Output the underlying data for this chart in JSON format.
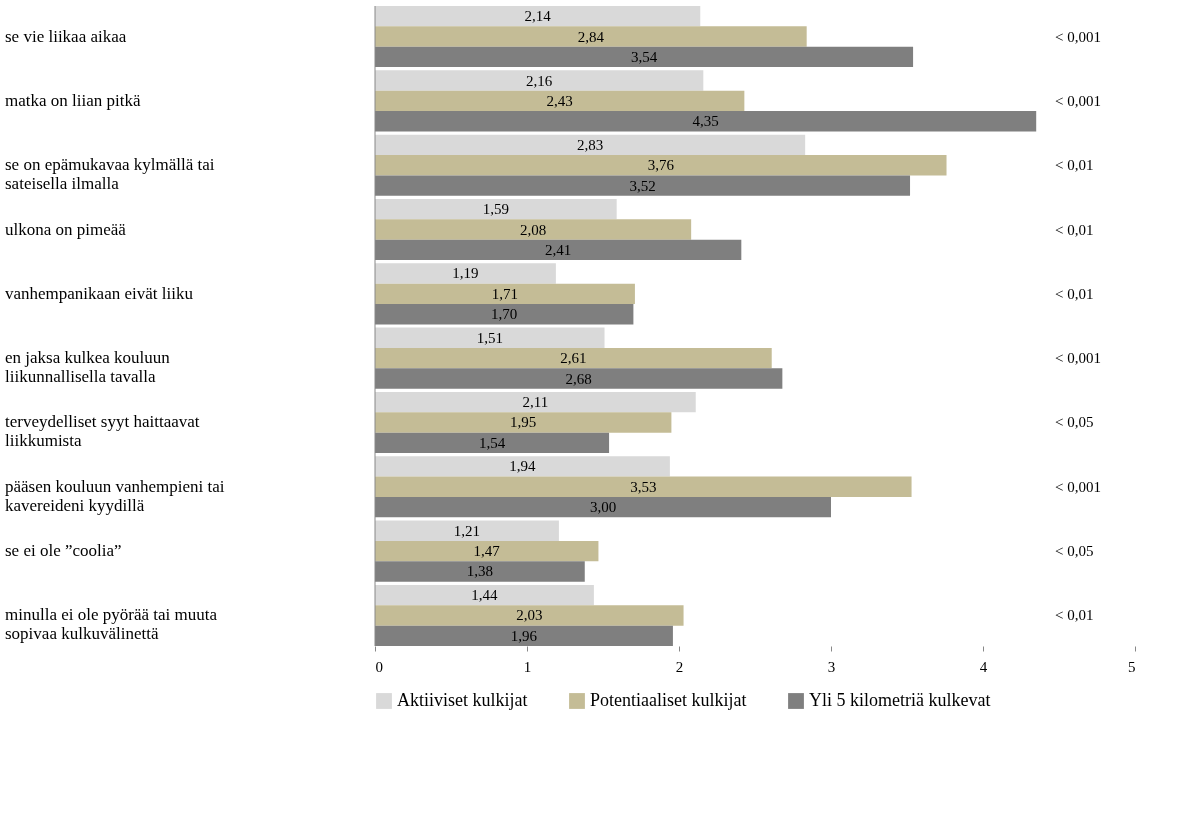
{
  "chart_data": {
    "type": "bar",
    "orientation": "horizontal",
    "categories": [
      "se vie liikaa  aikaa",
      "matka  on liian pitkä",
      "se on epämukavaa kylmällä  tai sateisella ilmalla",
      "ulkona on pimeää",
      "vanhempanikaan eivät liiku",
      "en jaksa kulkea kouluun liikunnallisella  tavalla",
      "terveydelliset syyt haittaavat liikkumista",
      "pääsen kouluun vanhempieni tai kavereideni kyydillä",
      "se ei ole ”coolia”",
      "minulla ei ole pyörää tai muuta sopivaa kulkuvälinettä"
    ],
    "series": [
      {
        "name": "Aktiiviset kulkijat",
        "color": "#d9d9d9",
        "values": [
          2.14,
          2.16,
          2.83,
          1.59,
          1.19,
          1.51,
          2.11,
          1.94,
          1.21,
          1.44
        ],
        "value_labels": [
          "2,14",
          "2,16",
          "2,83",
          "1,59",
          "1,19",
          "1,51",
          "2,11",
          "1,94",
          "1,21",
          "1,44"
        ]
      },
      {
        "name": "Potentiaaliset kulkijat",
        "color": "#c4bc96",
        "values": [
          2.84,
          2.43,
          3.76,
          2.08,
          1.71,
          2.61,
          1.95,
          3.53,
          1.47,
          2.03
        ],
        "value_labels": [
          "2,84",
          "2,43",
          "3,76",
          "2,08",
          "1,71",
          "2,61",
          "1,95",
          "3,53",
          "1,47",
          "2,03"
        ]
      },
      {
        "name": "Yli 5 kilometriä kulkevat",
        "color": "#7f7f7f",
        "values": [
          3.54,
          4.35,
          3.52,
          2.41,
          1.7,
          2.68,
          1.54,
          3.0,
          1.38,
          1.96
        ],
        "value_labels": [
          "3,54",
          "4,35",
          "3,52",
          "2,41",
          "1,70",
          "2,68",
          "1,54",
          "3,00",
          "1,38",
          "1,96"
        ]
      }
    ],
    "xlim": [
      0,
      5
    ],
    "xticks": [
      0,
      1,
      2,
      3,
      4,
      5
    ],
    "grid": false,
    "legend": "bottom",
    "annotations": [
      "< 0,001",
      "< 0,001",
      "< 0,01",
      "< 0,01",
      "< 0,01",
      "< 0,001",
      "< 0,05",
      "< 0,001",
      "< 0,05",
      "< 0,01"
    ]
  }
}
